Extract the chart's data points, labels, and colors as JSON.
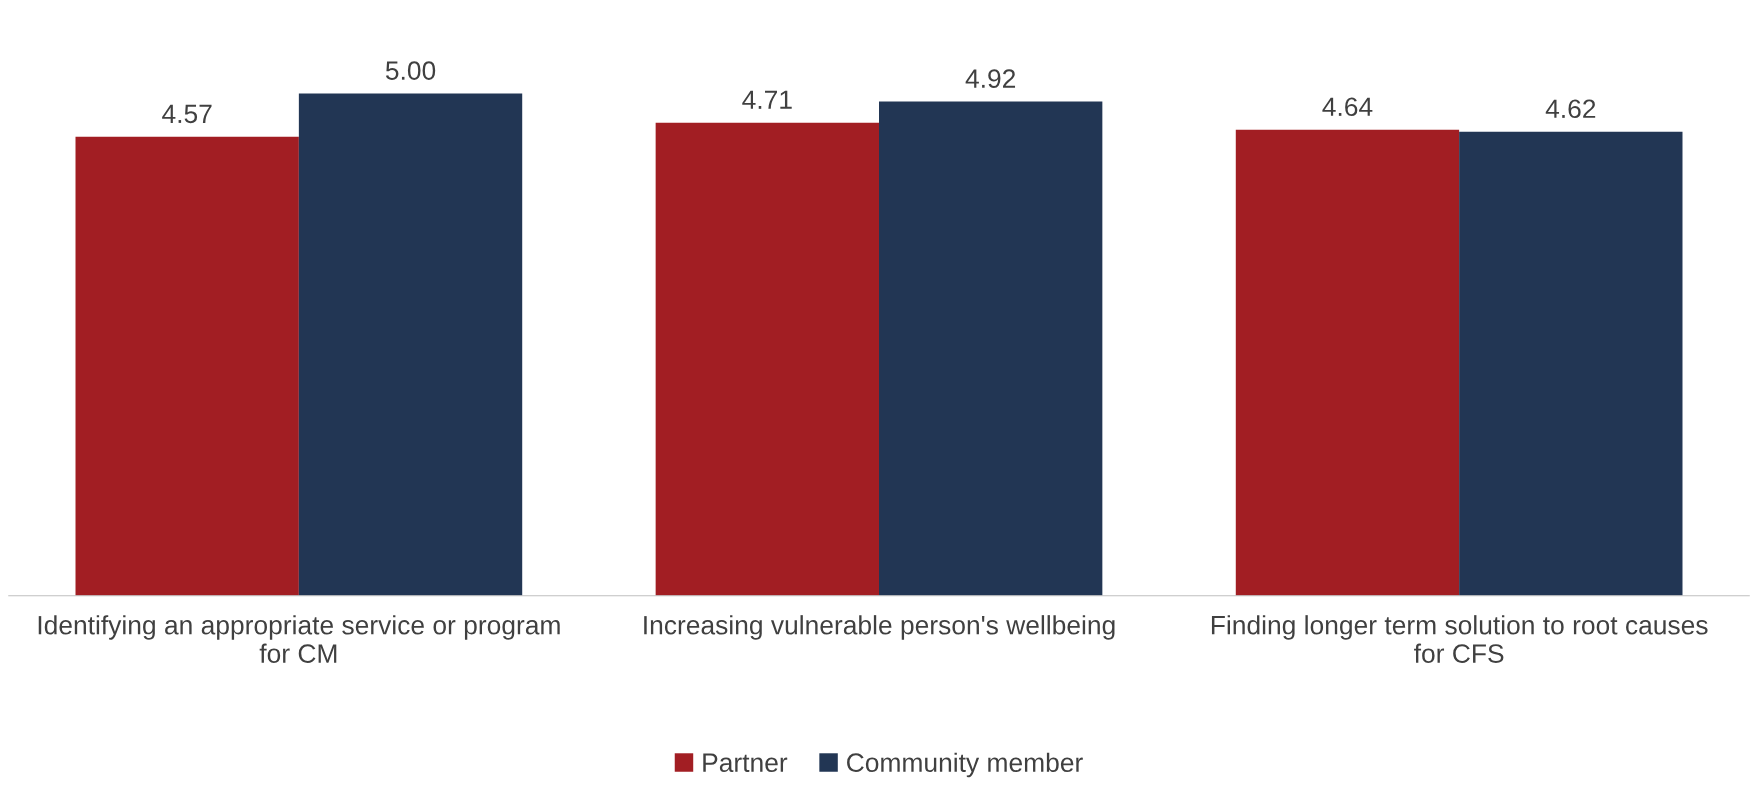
{
  "chart_data": {
    "type": "bar",
    "categories": [
      "Identifying an appropriate service or program\nfor CM",
      "Increasing vulnerable person's wellbeing",
      "Finding longer term solution to root causes\nfor CFS"
    ],
    "series": [
      {
        "name": "Partner",
        "color": "#a21e23",
        "values": [
          4.57,
          4.71,
          4.64
        ],
        "value_labels": [
          "4.57",
          "4.71",
          "4.64"
        ]
      },
      {
        "name": "Community member",
        "color": "#223654",
        "values": [
          5.0,
          4.92,
          4.62
        ],
        "value_labels": [
          "5.00",
          "4.92",
          "4.62"
        ]
      }
    ],
    "legend": "bottom",
    "grid": false,
    "tick_labels": "x"
  }
}
